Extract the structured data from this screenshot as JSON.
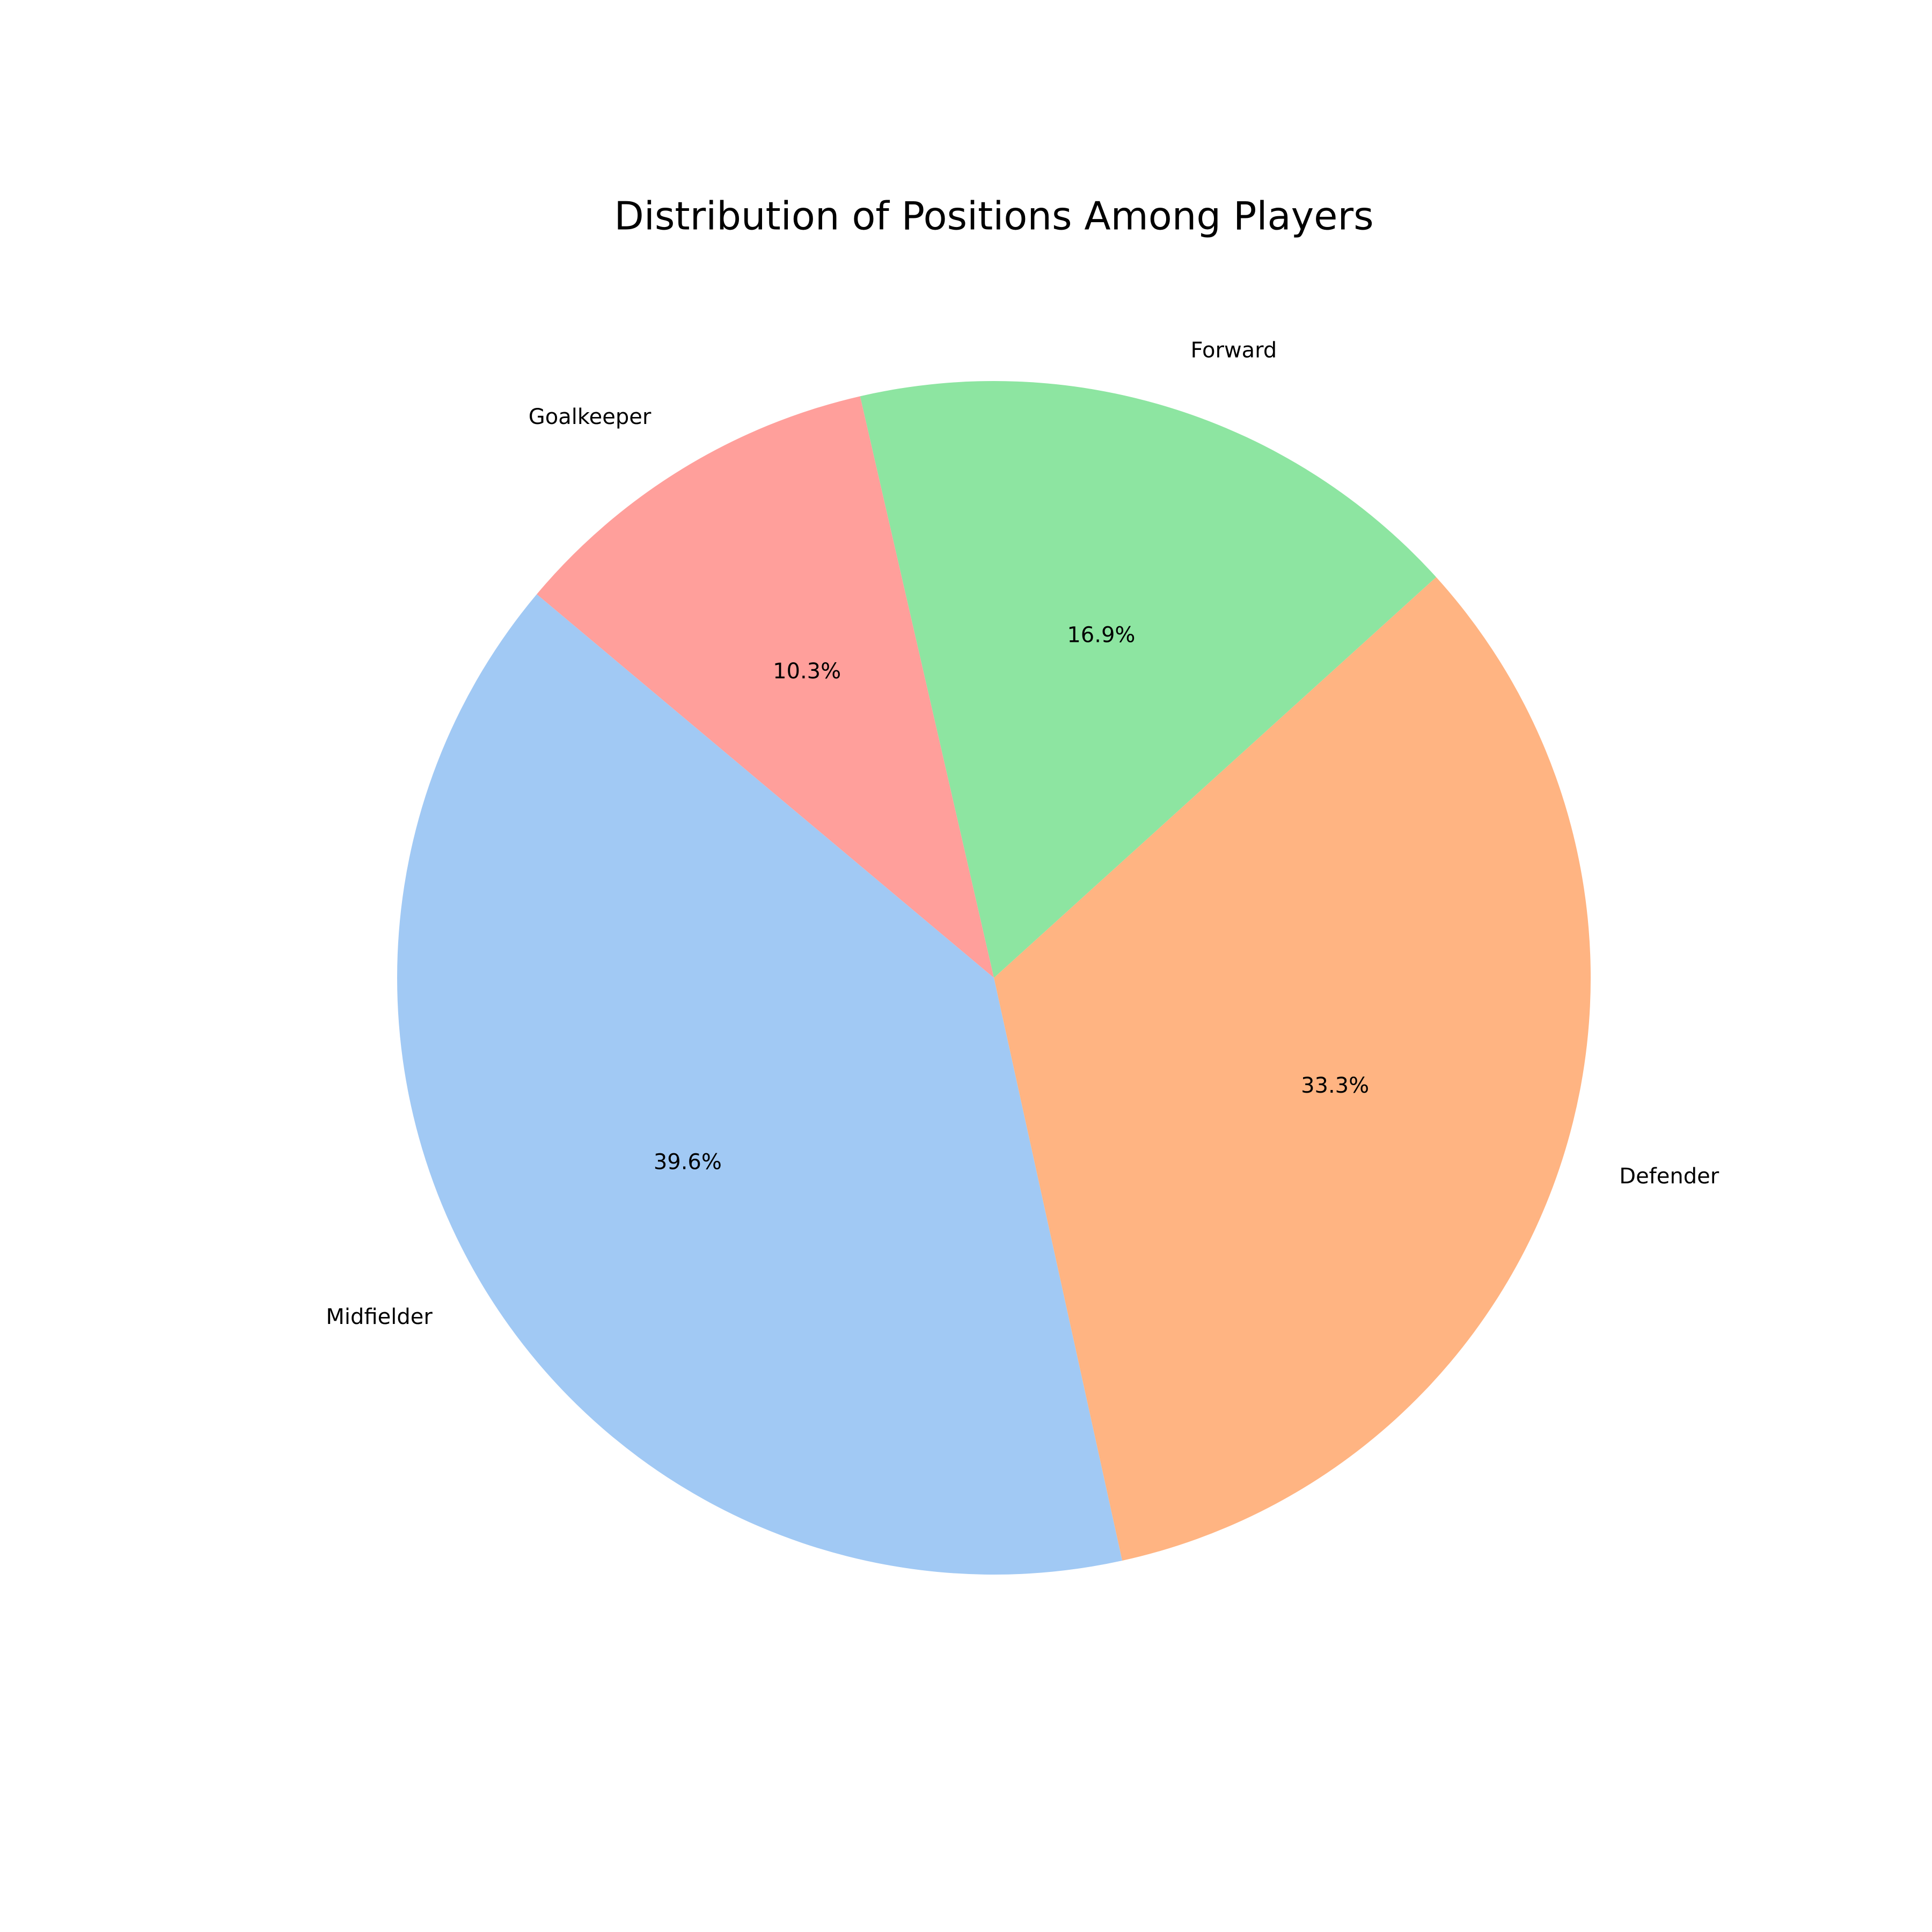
{
  "chart_data": {
    "type": "pie",
    "title": "Distribution of Positions Among Players",
    "start_angle_deg": 140,
    "direction": "counterclockwise",
    "slices": [
      {
        "label": "Midfielder",
        "value": 39.6,
        "pct_label": "39.6%",
        "color": "#a1c9f4"
      },
      {
        "label": "Defender",
        "value": 33.3,
        "pct_label": "33.3%",
        "color": "#ffb482"
      },
      {
        "label": "Forward",
        "value": 16.9,
        "pct_label": "16.9%",
        "color": "#8de5a1"
      },
      {
        "label": "Goalkeeper",
        "value": 10.3,
        "pct_label": "10.3%",
        "color": "#ff9f9b"
      }
    ]
  }
}
